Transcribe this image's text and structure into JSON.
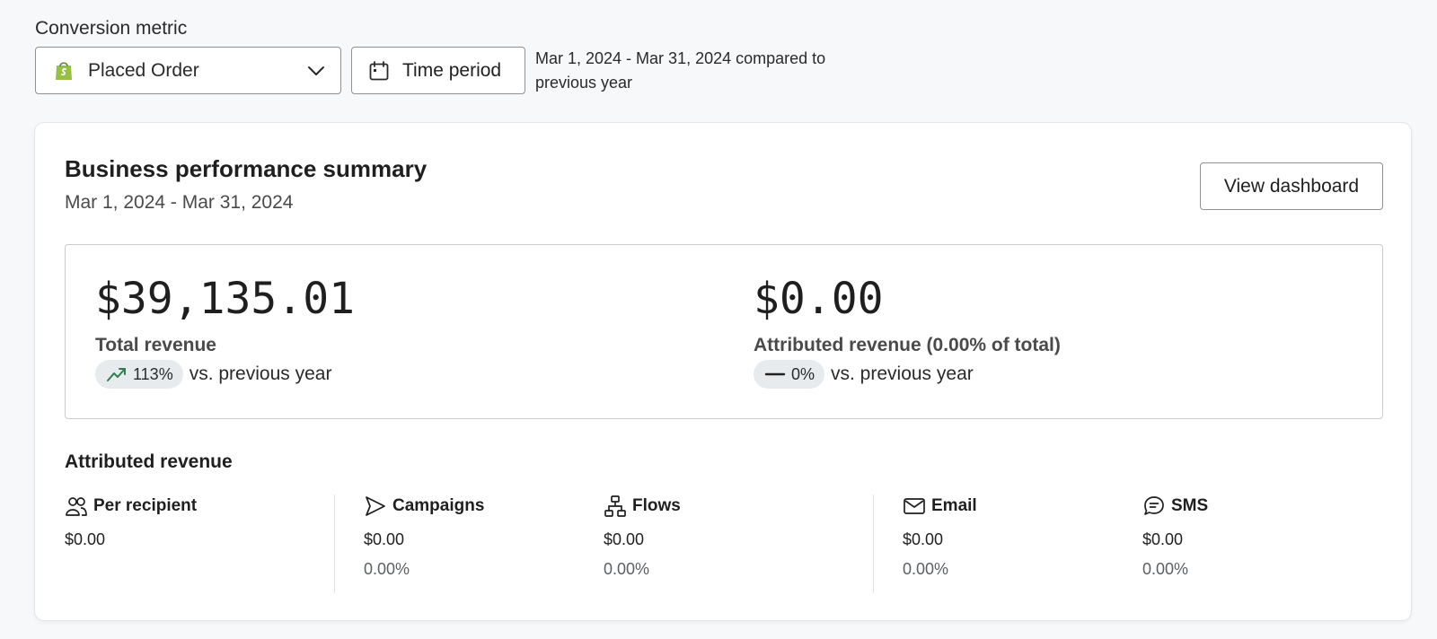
{
  "conversion": {
    "label": "Conversion metric",
    "selected": "Placed Order",
    "icon": "shopify-bag-icon",
    "brand_color": "#95bf47"
  },
  "time_period": {
    "button_label": "Time period",
    "description": "Mar 1, 2024 - Mar 31, 2024 compared to previous year"
  },
  "summary": {
    "title": "Business performance summary",
    "date_range": "Mar 1, 2024 - Mar 31, 2024",
    "view_button": "View dashboard",
    "total": {
      "value": "$39,135.01",
      "label": "Total revenue",
      "change": "113%",
      "change_icon": "trend-up-icon",
      "change_color": "#2e7d4f",
      "vs_text": "vs. previous year"
    },
    "attributed": {
      "value": "$0.00",
      "label": "Attributed revenue (0.00% of total)",
      "change": "0%",
      "change_icon": "dash-icon",
      "vs_text": "vs. previous year"
    }
  },
  "attributed_revenue": {
    "title": "Attributed revenue",
    "stats": [
      {
        "name": "Per recipient",
        "icon": "users-icon",
        "value": "$0.00"
      },
      {
        "name": "Campaigns",
        "icon": "send-icon",
        "value": "$0.00",
        "percent": "0.00%"
      },
      {
        "name": "Flows",
        "icon": "flow-icon",
        "value": "$0.00",
        "percent": "0.00%"
      },
      {
        "name": "Email",
        "icon": "mail-icon",
        "value": "$0.00",
        "percent": "0.00%"
      },
      {
        "name": "SMS",
        "icon": "chat-icon",
        "value": "$0.00",
        "percent": "0.00%"
      }
    ]
  }
}
